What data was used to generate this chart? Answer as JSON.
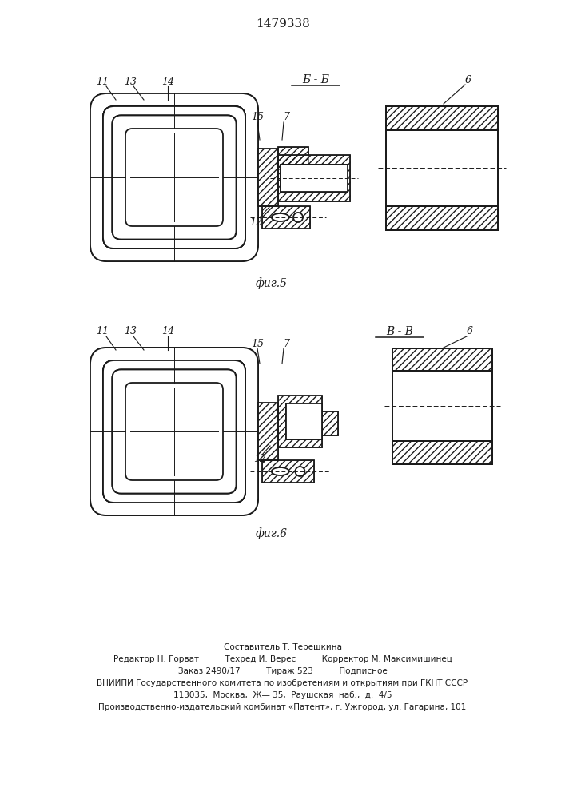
{
  "title": "1479338",
  "fig5_caption": "фиг.5",
  "fig6_caption": "фиг.6",
  "section_label_fig5": "Б - Б",
  "section_label_fig6": "В - В",
  "footer_lines": [
    "Составитель Т. Терешкина",
    "Редактор Н. Горват          Техред И. Верес          Корректор М. Максимишинец",
    "Заказ 2490/17          Тираж 523          Подписное",
    "ВНИИПИ Государственного комитета по изобретениям и открытиям при ГКНТ СССР",
    "113035,  Москва,  Ж— 35,  Раушская  наб.,  д.  4/5",
    "Производственно-издательский комбинат «Патент», г. Ужгород, ул. Гагарина, 101"
  ],
  "bg_color": "#ffffff",
  "line_color": "#1a1a1a"
}
